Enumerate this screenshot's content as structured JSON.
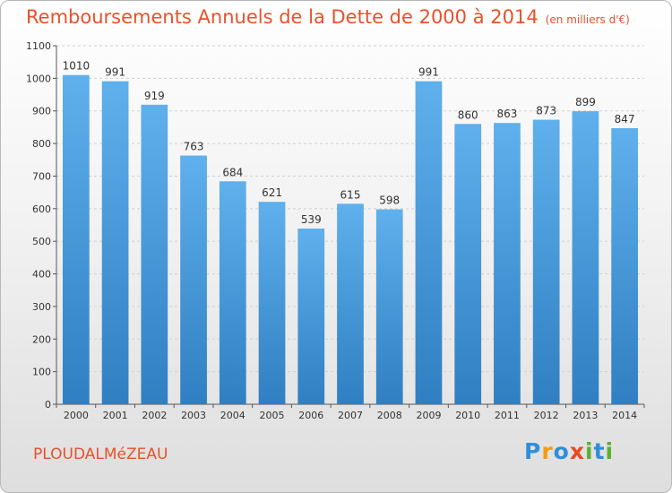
{
  "chart_data": {
    "type": "bar",
    "title": "Remboursements Annuels de la Dette de 2000 à 2014",
    "subtitle": "(en milliers d'€)",
    "categories": [
      "2000",
      "2001",
      "2002",
      "2003",
      "2004",
      "2005",
      "2006",
      "2007",
      "2008",
      "2009",
      "2010",
      "2011",
      "2012",
      "2013",
      "2014"
    ],
    "values": [
      1010,
      991,
      919,
      763,
      684,
      621,
      539,
      615,
      598,
      991,
      860,
      863,
      873,
      899,
      847
    ],
    "ylim": [
      0,
      1100
    ],
    "yticks": [
      0,
      100,
      200,
      300,
      400,
      500,
      600,
      700,
      800,
      900,
      1000,
      1100
    ],
    "grid": true,
    "bar_color": "#4a9fe0"
  },
  "footer": {
    "town": "PLOUDALMéZEAU",
    "logo": {
      "letters": [
        "P",
        "r",
        "o",
        "x",
        "i",
        "t",
        "i"
      ],
      "colors": [
        "#2e8fd8",
        "#f39c12",
        "#2e8fd8",
        "#e84c1e",
        "#5bb02f",
        "#2e8fd8",
        "#5bb02f"
      ]
    }
  }
}
